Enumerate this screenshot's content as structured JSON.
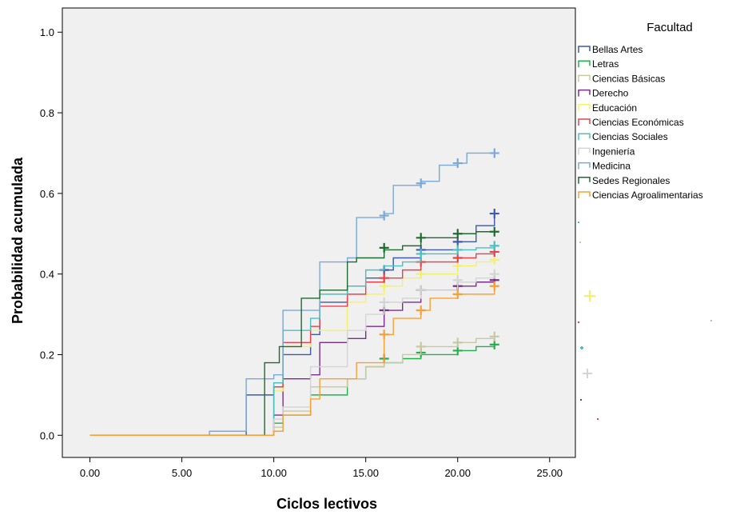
{
  "chart_data": {
    "type": "line",
    "step": true,
    "xlabel": "Ciclos lectivos",
    "ylabel": "Probabilidad acumulada",
    "xlim": [
      -1.5,
      26.4
    ],
    "ylim": [
      -0.055,
      1.06
    ],
    "x_ticks": [
      "0.00",
      "5.00",
      "10.00",
      "15.00",
      "20.00",
      "25.00"
    ],
    "y_ticks": [
      "0.0",
      "0.2",
      "0.4",
      "0.6",
      "0.8",
      "1.0"
    ],
    "grid": false,
    "plot_background": "#f0f0f0",
    "legend": {
      "title": "Facultad",
      "position": "right"
    },
    "series": [
      {
        "name": "Bellas Artes",
        "color": "#3e58ac",
        "x": [
          0,
          6.5,
          8.5,
          10,
          10.5,
          12,
          12.5,
          14,
          15,
          16,
          16.5,
          18,
          20,
          21,
          22
        ],
        "y": [
          0,
          0,
          0.1,
          0.12,
          0.2,
          0.25,
          0.33,
          0.37,
          0.39,
          0.41,
          0.44,
          0.46,
          0.48,
          0.52,
          0.55
        ],
        "censor_x": [
          16,
          18,
          20,
          22
        ],
        "censor_y": [
          0.41,
          0.46,
          0.48,
          0.55
        ]
      },
      {
        "name": "Letras",
        "color": "#22b24c",
        "x": [
          0,
          8.5,
          10,
          10.5,
          12,
          14,
          15,
          16,
          17,
          18,
          20,
          21,
          22
        ],
        "y": [
          0,
          0,
          0.03,
          0.05,
          0.1,
          0.14,
          0.17,
          0.18,
          0.19,
          0.2,
          0.21,
          0.22,
          0.225
        ],
        "censor_x": [
          16,
          18,
          20,
          22
        ],
        "censor_y": [
          0.19,
          0.205,
          0.21,
          0.225
        ]
      },
      {
        "name": "Ciencias Básicas",
        "color": "#c9c8a0",
        "x": [
          0,
          8.5,
          10,
          10.5,
          12,
          14,
          15,
          16,
          17,
          18,
          20,
          21,
          22
        ],
        "y": [
          0,
          0,
          0.02,
          0.06,
          0.12,
          0.14,
          0.17,
          0.18,
          0.2,
          0.22,
          0.23,
          0.24,
          0.245
        ],
        "censor_x": [
          18,
          20,
          22
        ],
        "censor_y": [
          0.22,
          0.23,
          0.245
        ]
      },
      {
        "name": "Derecho",
        "color": "#7b2d8e",
        "x": [
          0,
          8.5,
          10,
          10.5,
          12,
          12.5,
          14,
          15,
          16,
          17,
          18,
          20,
          21,
          22
        ],
        "y": [
          0,
          0,
          0.05,
          0.14,
          0.15,
          0.23,
          0.24,
          0.27,
          0.31,
          0.33,
          0.36,
          0.37,
          0.38,
          0.385
        ],
        "censor_x": [
          16,
          18,
          20,
          22
        ],
        "censor_y": [
          0.31,
          0.36,
          0.37,
          0.385
        ]
      },
      {
        "name": "Educación",
        "color": "#f5f06a",
        "x": [
          0,
          8.5,
          10,
          10.5,
          12,
          14,
          15,
          16,
          17,
          18,
          20,
          21,
          22
        ],
        "y": [
          0,
          0,
          0.11,
          0.22,
          0.26,
          0.33,
          0.35,
          0.37,
          0.39,
          0.4,
          0.42,
          0.43,
          0.435
        ],
        "censor_x": [
          16,
          18,
          20,
          22
        ],
        "censor_y": [
          0.37,
          0.4,
          0.42,
          0.435
        ]
      },
      {
        "name": "Ciencias Económicas",
        "color": "#e8414a",
        "x": [
          0,
          8.5,
          10,
          10.5,
          12,
          12.5,
          14,
          15,
          16,
          17,
          18,
          20,
          21,
          22
        ],
        "y": [
          0,
          0,
          0.12,
          0.23,
          0.27,
          0.32,
          0.35,
          0.38,
          0.39,
          0.41,
          0.43,
          0.44,
          0.45,
          0.455
        ],
        "censor_x": [
          16,
          18,
          20,
          22
        ],
        "censor_y": [
          0.39,
          0.43,
          0.44,
          0.455
        ]
      },
      {
        "name": "Ciencias Sociales",
        "color": "#48c0c2",
        "x": [
          0,
          8.5,
          10,
          10.5,
          12,
          12.5,
          14,
          15,
          16,
          17,
          18,
          20,
          21,
          22
        ],
        "y": [
          0,
          0,
          0.13,
          0.26,
          0.29,
          0.35,
          0.37,
          0.41,
          0.42,
          0.43,
          0.45,
          0.46,
          0.465,
          0.47
        ],
        "censor_x": [
          18,
          20,
          22
        ],
        "censor_y": [
          0.45,
          0.46,
          0.47
        ]
      },
      {
        "name": "Ingeniería",
        "color": "#d4d4d4",
        "x": [
          0,
          8.5,
          10,
          10.5,
          12,
          14,
          15,
          16,
          17,
          18,
          20,
          21,
          22
        ],
        "y": [
          0,
          0,
          0.04,
          0.07,
          0.17,
          0.26,
          0.3,
          0.33,
          0.34,
          0.36,
          0.38,
          0.39,
          0.4
        ],
        "censor_x": [
          16,
          18,
          20,
          22
        ],
        "censor_y": [
          0.33,
          0.36,
          0.385,
          0.4
        ]
      },
      {
        "name": "Medicina",
        "color": "#7aa8d8",
        "x": [
          0,
          6.5,
          8.5,
          10,
          10.5,
          12.5,
          14,
          14.5,
          16,
          16.5,
          18,
          19,
          20,
          20.5,
          22
        ],
        "y": [
          0,
          0.01,
          0.14,
          0.15,
          0.31,
          0.43,
          0.44,
          0.54,
          0.55,
          0.62,
          0.63,
          0.67,
          0.675,
          0.7,
          0.7
        ],
        "censor_x": [
          16,
          18,
          20,
          22
        ],
        "censor_y": [
          0.545,
          0.625,
          0.675,
          0.7
        ]
      },
      {
        "name": "Sedes Regionales",
        "color": "#1e6b30",
        "x": [
          0,
          8.5,
          9.5,
          10.3,
          11.5,
          12.5,
          14,
          14.5,
          16,
          17,
          18,
          20,
          21,
          22
        ],
        "y": [
          0,
          0,
          0.18,
          0.22,
          0.34,
          0.36,
          0.43,
          0.44,
          0.46,
          0.47,
          0.49,
          0.5,
          0.505,
          0.505
        ],
        "censor_x": [
          16,
          18,
          20,
          22
        ],
        "censor_y": [
          0.465,
          0.49,
          0.5,
          0.505
        ]
      },
      {
        "name": "Ciencias Agroalimentarias",
        "color": "#f7a036",
        "x": [
          0,
          8.5,
          10,
          10.5,
          12,
          12.5,
          14.5,
          16,
          16.5,
          18,
          18.5,
          20,
          22
        ],
        "y": [
          0,
          0,
          0.01,
          0.05,
          0.09,
          0.14,
          0.18,
          0.25,
          0.29,
          0.31,
          0.34,
          0.35,
          0.37
        ],
        "censor_x": [
          16,
          18,
          20,
          22
        ],
        "censor_y": [
          0.25,
          0.31,
          0.35,
          0.37
        ]
      }
    ]
  }
}
